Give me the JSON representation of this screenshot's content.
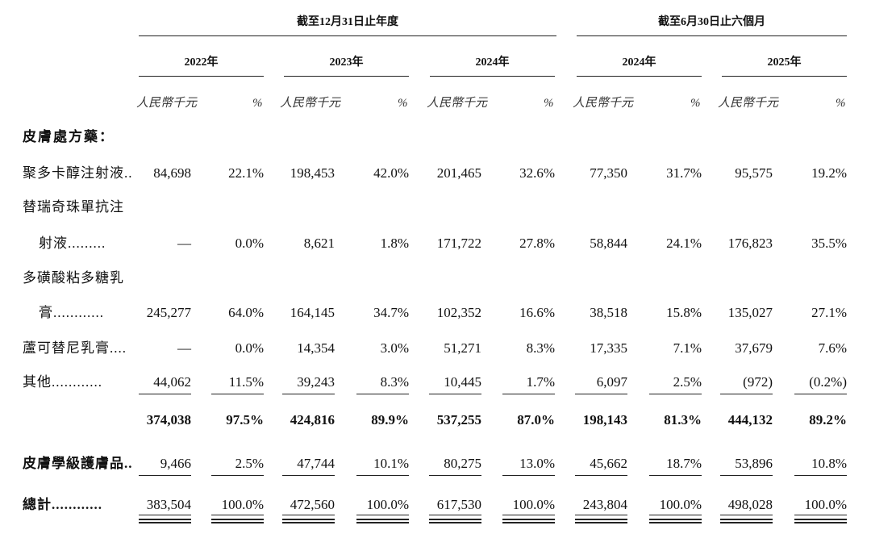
{
  "table": {
    "groups": [
      "截至12月31日止年度",
      "截至6月30日止六個月"
    ],
    "years": [
      "2022年",
      "2023年",
      "2024年",
      "2024年",
      "2025年"
    ],
    "units": [
      "人民幣千元",
      "%"
    ],
    "section": "皮膚處方藥：",
    "rows": [
      {
        "label": [
          "聚多卡醇注射液.."
        ],
        "values": [
          "84,698",
          "22.1%",
          "198,453",
          "42.0%",
          "201,465",
          "32.6%",
          "77,350",
          "31.7%",
          "95,575",
          "19.2%"
        ]
      },
      {
        "label": [
          "替瑞奇珠單抗注",
          "射液........."
        ],
        "values": [
          "—",
          "0.0%",
          "8,621",
          "1.8%",
          "171,722",
          "27.8%",
          "58,844",
          "24.1%",
          "176,823",
          "35.5%"
        ]
      },
      {
        "label": [
          "多磺酸粘多糖乳",
          "膏............"
        ],
        "values": [
          "245,277",
          "64.0%",
          "164,145",
          "34.7%",
          "102,352",
          "16.6%",
          "38,518",
          "15.8%",
          "135,027",
          "27.1%"
        ]
      },
      {
        "label": [
          "蘆可替尼乳膏...."
        ],
        "values": [
          "—",
          "0.0%",
          "14,354",
          "3.0%",
          "51,271",
          "8.3%",
          "17,335",
          "7.1%",
          "37,679",
          "7.6%"
        ]
      },
      {
        "label": [
          "其他............"
        ],
        "values": [
          "44,062",
          "11.5%",
          "39,243",
          "8.3%",
          "10,445",
          "1.7%",
          "6,097",
          "2.5%",
          "(972)",
          "(0.2%)"
        ]
      },
      {
        "values": [
          "374,038",
          "97.5%",
          "424,816",
          "89.9%",
          "537,255",
          "87.0%",
          "198,143",
          "81.3%",
          "444,132",
          "89.2%"
        ]
      },
      {
        "label": [
          "皮膚學級護膚品.."
        ],
        "values": [
          "9,466",
          "2.5%",
          "47,744",
          "10.1%",
          "80,275",
          "13.0%",
          "45,662",
          "18.7%",
          "53,896",
          "10.8%"
        ]
      },
      {
        "label": [
          "總計............"
        ],
        "values": [
          "383,504",
          "100.0%",
          "472,560",
          "100.0%",
          "617,530",
          "100.0%",
          "243,804",
          "100.0%",
          "498,028",
          "100.0%"
        ]
      }
    ]
  }
}
